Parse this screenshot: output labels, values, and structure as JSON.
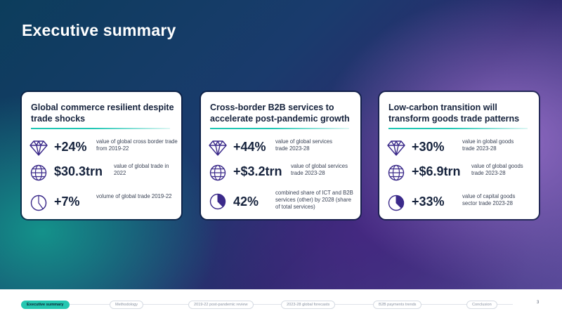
{
  "title": "Executive summary",
  "colors": {
    "accent": "#26c7b1",
    "icon": "#3b2a8a",
    "heading": "#15223c"
  },
  "cards": [
    {
      "heading": "Global commerce resilient despite trade shocks",
      "metrics": [
        {
          "icon": "diamond-icon",
          "value": "+24%",
          "desc": "value of global cross border trade from 2019-22"
        },
        {
          "icon": "globe-icon",
          "value": "$30.3trn",
          "desc": "value of global trade in 2022"
        },
        {
          "icon": "pie-icon",
          "value": "+7%",
          "desc": "volume of global trade 2019-22"
        }
      ]
    },
    {
      "heading": "Cross-border B2B services to accelerate post-pandemic growth",
      "metrics": [
        {
          "icon": "diamond-icon",
          "value": "+44%",
          "desc": "value of global services trade 2023-28"
        },
        {
          "icon": "globe-icon",
          "value": "+$3.2trn",
          "desc": "value of global services trade 2023-28"
        },
        {
          "icon": "pie-icon",
          "value": "42%",
          "desc": "combined share of ICT and B2B services (other) by 2028 (share of total services)"
        }
      ]
    },
    {
      "heading": "Low-carbon transition will transform goods trade patterns",
      "metrics": [
        {
          "icon": "diamond-icon",
          "value": "+30%",
          "desc": "value in global goods trade 2023-28"
        },
        {
          "icon": "globe-icon",
          "value": "+$6.9trn",
          "desc": "value of global goods trade 2023-28"
        },
        {
          "icon": "pie-icon",
          "value": "+33%",
          "desc": "value of capital goods sector trade 2023-28"
        }
      ]
    }
  ],
  "footer": {
    "nav": [
      {
        "label": "Executive summary",
        "active": true
      },
      {
        "label": "Methodology",
        "active": false
      },
      {
        "label": "2019-22 post-pandemic review",
        "active": false
      },
      {
        "label": "2023-28 global forecasts",
        "active": false
      },
      {
        "label": "B2B payments trends",
        "active": false
      },
      {
        "label": "Conclusion",
        "active": false
      }
    ],
    "page_number": "3"
  }
}
